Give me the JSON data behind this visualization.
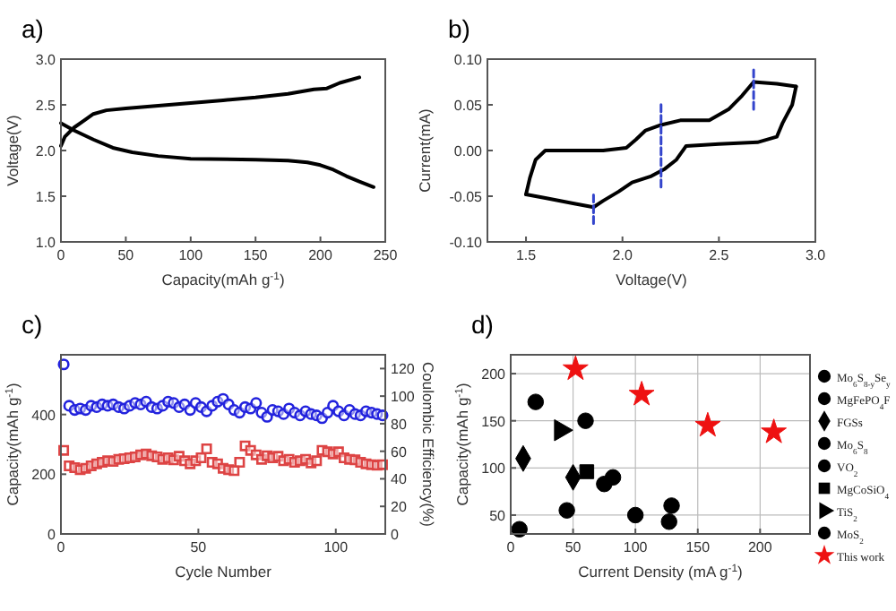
{
  "chart_data": [
    {
      "type": "line",
      "title": "a)",
      "xlabel": "Capacity(mAh g$^{-1}$)",
      "ylabel": "Voltage(V)",
      "xlim": [
        0,
        250
      ],
      "ylim": [
        1,
        3
      ],
      "xticks": [
        0,
        50,
        100,
        150,
        200,
        250
      ],
      "yticks": [
        {
          "value": 1,
          "label": "1.0"
        },
        1.5,
        {
          "value": 2,
          "label": "2.0"
        },
        2.5,
        {
          "value": 3,
          "label": "3.0"
        }
      ],
      "grid": false,
      "legend": false,
      "series": [
        {
          "color": "#000000",
          "x": [
            0,
            3,
            10,
            18,
            25,
            35,
            50,
            75,
            100,
            125,
            150,
            175,
            195,
            205,
            215,
            230
          ],
          "values": [
            2.05,
            2.15,
            2.25,
            2.33,
            2.4,
            2.44,
            2.46,
            2.49,
            2.52,
            2.55,
            2.58,
            2.62,
            2.67,
            2.68,
            2.74,
            2.8
          ]
        },
        {
          "color": "#000000",
          "x": [
            0,
            10,
            25,
            40,
            55,
            75,
            100,
            150,
            175,
            190,
            200,
            210,
            220,
            230,
            241
          ],
          "values": [
            2.3,
            2.22,
            2.12,
            2.03,
            1.98,
            1.94,
            1.91,
            1.9,
            1.89,
            1.87,
            1.84,
            1.79,
            1.72,
            1.66,
            1.6
          ]
        }
      ]
    },
    {
      "type": "line",
      "title": "b)",
      "xlabel": "Voltage(V)",
      "ylabel": "Current(mA)",
      "xlim": [
        1.3,
        3.0
      ],
      "ylim": [
        -0.1,
        0.1
      ],
      "xticks": [
        1.5,
        {
          "value": 2,
          "label": "2.0"
        },
        2.5,
        {
          "value": 3,
          "label": "3.0"
        }
      ],
      "yticks": [
        {
          "value": -0.1,
          "label": "-0.10"
        },
        {
          "value": -0.05,
          "label": "-0.05"
        },
        {
          "value": 0,
          "label": "0.00"
        },
        {
          "value": 0.05,
          "label": "0.05"
        },
        {
          "value": 0.1,
          "label": "0.10"
        }
      ],
      "grid": false,
      "legend": false,
      "series": [
        {
          "color": "#000000",
          "x": [
            1.5,
            1.52,
            1.55,
            1.6,
            1.7,
            1.9,
            2.02,
            2.07,
            2.12,
            2.2,
            2.3,
            2.45,
            2.55,
            2.62,
            2.68,
            2.8,
            2.9
          ],
          "values": [
            -0.048,
            -0.03,
            -0.01,
            0.0,
            0.0,
            0.0,
            0.003,
            0.012,
            0.022,
            0.028,
            0.033,
            0.033,
            0.045,
            0.06,
            0.075,
            0.073,
            0.07
          ]
        },
        {
          "color": "#000000",
          "x": [
            1.5,
            1.6,
            1.75,
            1.85,
            1.9,
            1.98,
            2.05,
            2.15,
            2.22,
            2.28,
            2.33,
            2.5,
            2.7,
            2.8,
            2.83,
            2.88,
            2.9
          ],
          "values": [
            -0.048,
            -0.052,
            -0.058,
            -0.062,
            -0.055,
            -0.045,
            -0.035,
            -0.028,
            -0.02,
            -0.01,
            0.005,
            0.007,
            0.009,
            0.015,
            0.03,
            0.05,
            0.07
          ]
        },
        {
          "color": "#3344cc",
          "line_style": "dashed",
          "x": [
            1.85,
            1.85
          ],
          "values": [
            -0.08,
            -0.045
          ]
        },
        {
          "color": "#3344cc",
          "line_style": "dashed",
          "x": [
            2.2,
            2.2
          ],
          "values": [
            -0.04,
            0.052
          ]
        },
        {
          "color": "#3344cc",
          "line_style": "dashed",
          "x": [
            2.68,
            2.68
          ],
          "values": [
            0.045,
            0.092
          ]
        }
      ]
    },
    {
      "type": "scatter",
      "title": "c)",
      "xlabel": "Cycle Number",
      "ylabel": "Capacity(mAh g$^{-1}$)",
      "y2label": "Coulombic Efficiency(%)",
      "xlim": [
        0,
        118
      ],
      "ylim": [
        0,
        600
      ],
      "y2lim": [
        0,
        130
      ],
      "xticks": [
        0,
        50,
        100
      ],
      "yticks": [
        0,
        200,
        400
      ],
      "y2ticks": [
        0,
        20,
        40,
        60,
        80,
        100,
        120
      ],
      "grid": false,
      "legend": false,
      "series": [
        {
          "color": "#2222dd",
          "marker": "circle",
          "axis": "y2",
          "x": [
            1,
            3,
            5,
            7,
            9,
            11,
            13,
            15,
            17,
            19,
            21,
            23,
            25,
            27,
            29,
            31,
            33,
            35,
            37,
            39,
            41,
            43,
            45,
            47,
            49,
            51,
            53,
            55,
            57,
            59,
            61,
            63,
            65,
            67,
            69,
            71,
            73,
            75,
            77,
            79,
            81,
            83,
            85,
            87,
            89,
            91,
            93,
            95,
            97,
            99,
            101,
            103,
            105,
            107,
            109,
            111,
            113,
            115,
            117
          ],
          "values": [
            123,
            93,
            90,
            91,
            90,
            93,
            92,
            94,
            93,
            94,
            92,
            91,
            93,
            95,
            94,
            96,
            92,
            91,
            93,
            96,
            95,
            92,
            94,
            90,
            95,
            92,
            89,
            93,
            96,
            98,
            94,
            90,
            88,
            92,
            91,
            95,
            88,
            85,
            90,
            89,
            87,
            91,
            88,
            86,
            89,
            87,
            86,
            84,
            88,
            93,
            89,
            86,
            90,
            87,
            86,
            89,
            88,
            87,
            86
          ]
        },
        {
          "color": "#dd4444",
          "marker": "square",
          "x": [
            1,
            3,
            5,
            7,
            9,
            11,
            13,
            15,
            17,
            19,
            21,
            23,
            25,
            27,
            29,
            31,
            33,
            35,
            37,
            39,
            41,
            43,
            45,
            47,
            49,
            51,
            53,
            55,
            57,
            59,
            61,
            63,
            65,
            67,
            69,
            71,
            73,
            75,
            77,
            79,
            81,
            83,
            85,
            87,
            89,
            91,
            93,
            95,
            97,
            99,
            101,
            103,
            105,
            107,
            109,
            111,
            113,
            115,
            117
          ],
          "values": [
            280,
            228,
            222,
            215,
            220,
            228,
            235,
            240,
            245,
            243,
            250,
            252,
            255,
            258,
            265,
            268,
            262,
            258,
            250,
            255,
            248,
            260,
            245,
            235,
            245,
            255,
            285,
            240,
            235,
            220,
            215,
            212,
            240,
            295,
            280,
            265,
            250,
            262,
            255,
            260,
            245,
            250,
            240,
            245,
            250,
            238,
            245,
            280,
            275,
            268,
            275,
            255,
            250,
            248,
            240,
            235,
            232,
            230,
            232
          ]
        }
      ]
    },
    {
      "type": "scatter",
      "title": "d)",
      "xlabel": "Current Density (mA g$^{-1}$)",
      "ylabel": "Capacity(mAh g$^{-1}$)",
      "xlim": [
        0,
        240
      ],
      "ylim": [
        30,
        220
      ],
      "xticks": [
        0,
        50,
        100,
        150,
        200
      ],
      "yticks": [
        50,
        100,
        150,
        200
      ],
      "grid": true,
      "legend": "right",
      "series": [
        {
          "name": "Mo$_{6}$S$_{8-y}$Se$_{y}$",
          "color": "#000000",
          "marker": "circle",
          "x": [
            75,
            127
          ],
          "values": [
            83,
            43
          ]
        },
        {
          "name": "MgFePO$_{4}$F",
          "color": "#000000",
          "marker": "circle",
          "x": [
            60
          ],
          "values": [
            150
          ]
        },
        {
          "name": "FGSs",
          "color": "#000000",
          "marker": "diamond",
          "x": [
            10,
            50
          ],
          "values": [
            110,
            90
          ]
        },
        {
          "name": "Mo$_{6}$S$_{8}$",
          "color": "#000000",
          "marker": "circle",
          "x": [
            20,
            45,
            100,
            129
          ],
          "values": [
            170,
            55,
            50,
            60
          ]
        },
        {
          "name": "VO$_{2}$",
          "color": "#000000",
          "marker": "circle",
          "x": [
            7
          ],
          "values": [
            35
          ]
        },
        {
          "name": "MgCoSiO$_{4}$",
          "color": "#000000",
          "marker": "square",
          "x": [
            61
          ],
          "values": [
            96
          ]
        },
        {
          "name": "TiS$_{2}$",
          "color": "#000000",
          "marker": "triangle",
          "x": [
            40
          ],
          "values": [
            140
          ]
        },
        {
          "name": "MoS$_{2}$",
          "color": "#000000",
          "marker": "circle",
          "x": [
            82
          ],
          "values": [
            90
          ]
        },
        {
          "name": "This work",
          "color": "#ee1111",
          "marker": "star",
          "x": [
            52,
            105,
            158,
            211
          ],
          "values": [
            205,
            178,
            145,
            138
          ]
        }
      ]
    }
  ]
}
